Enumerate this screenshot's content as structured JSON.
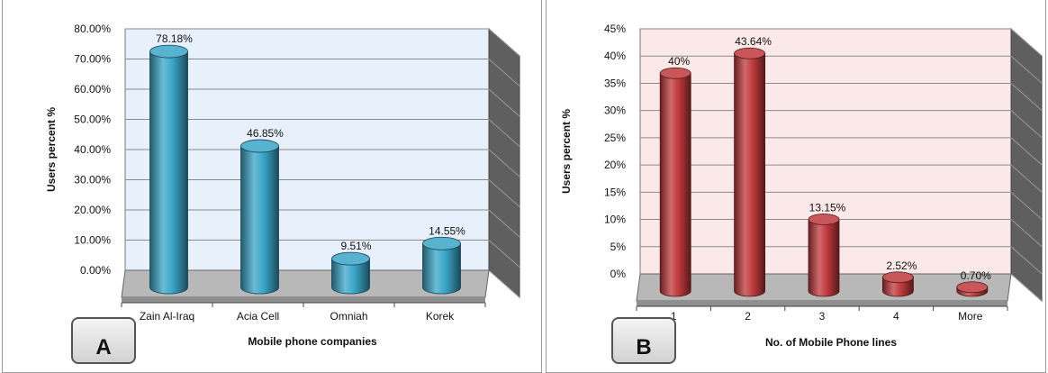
{
  "chart_data": [
    {
      "type": "bar",
      "panel_label": "A",
      "categories": [
        "Zain Al-Iraq",
        "Acia Cell",
        "Omniah",
        "Korek"
      ],
      "values": [
        78.18,
        46.85,
        9.51,
        14.55
      ],
      "data_labels": [
        "78.18%",
        "46.85%",
        "9.51%",
        "14.55%"
      ],
      "xlabel": "Mobile phone companies",
      "ylabel": "Users percent %",
      "ylim": [
        0,
        80
      ],
      "yticks": [
        "0.00%",
        "10.00%",
        "20.00%",
        "30.00%",
        "40.00%",
        "50.00%",
        "60.00%",
        "70.00%",
        "80.00%"
      ],
      "bar_color": "#3aa6c8",
      "background_color": "#e8f1fb",
      "grid": true
    },
    {
      "type": "bar",
      "panel_label": "B",
      "categories": [
        "1",
        "2",
        "3",
        "4",
        "More"
      ],
      "values": [
        40,
        43.64,
        13.15,
        2.52,
        0.7
      ],
      "data_labels": [
        "40%",
        "43.64%",
        "13.15%",
        "2.52%",
        "0.70%"
      ],
      "xlabel": "No. of Mobile  Phone lines",
      "ylabel": "Users percent %",
      "ylim": [
        0,
        45
      ],
      "yticks": [
        "0%",
        "5%",
        "10%",
        "15%",
        "20%",
        "25%",
        "30%",
        "35%",
        "40%",
        "45%"
      ],
      "bar_color": "#c0393c",
      "background_color": "#fbe9e9",
      "grid": true
    }
  ]
}
